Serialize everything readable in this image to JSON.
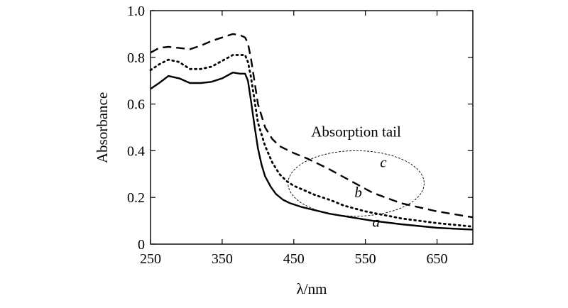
{
  "chart_data": {
    "type": "line",
    "xlabel": "λ/nm",
    "ylabel": "Absorbance",
    "xlim": [
      250,
      700
    ],
    "ylim": [
      0,
      1.0
    ],
    "x_ticks": [
      250,
      350,
      450,
      550,
      650
    ],
    "y_ticks": [
      0,
      0.2,
      0.4,
      0.6,
      0.8,
      1.0
    ],
    "x_tick_labels": [
      "250",
      "350",
      "450",
      "550",
      "650"
    ],
    "y_tick_labels": [
      "0",
      "0.2",
      "0.4",
      "0.6",
      "0.8",
      "1.0"
    ],
    "grid": false,
    "annotation": {
      "text": "Absorption tail",
      "ellipse_center": [
        537,
        0.26
      ],
      "ellipse_radius": [
        95,
        0.14
      ]
    },
    "series": [
      {
        "name": "a",
        "style": "solid",
        "label_at": [
          565,
          0.075
        ],
        "x": [
          250,
          262,
          275,
          290,
          305,
          320,
          335,
          350,
          365,
          375,
          382,
          386,
          390,
          395,
          400,
          405,
          410,
          418,
          425,
          435,
          445,
          460,
          480,
          500,
          530,
          560,
          600,
          650,
          700
        ],
        "y": [
          0.665,
          0.69,
          0.72,
          0.71,
          0.69,
          0.69,
          0.695,
          0.71,
          0.735,
          0.73,
          0.73,
          0.7,
          0.62,
          0.51,
          0.41,
          0.34,
          0.29,
          0.245,
          0.215,
          0.19,
          0.175,
          0.16,
          0.145,
          0.13,
          0.115,
          0.1,
          0.085,
          0.07,
          0.062
        ]
      },
      {
        "name": "b",
        "style": "dotted",
        "label_at": [
          540,
          0.2
        ],
        "x": [
          250,
          262,
          275,
          290,
          305,
          320,
          335,
          350,
          365,
          375,
          382,
          386,
          390,
          395,
          400,
          410,
          420,
          430,
          440,
          450,
          465,
          480,
          500,
          520,
          550,
          600,
          650,
          700
        ],
        "y": [
          0.745,
          0.77,
          0.79,
          0.78,
          0.75,
          0.75,
          0.76,
          0.785,
          0.81,
          0.81,
          0.81,
          0.78,
          0.72,
          0.62,
          0.52,
          0.42,
          0.35,
          0.3,
          0.27,
          0.25,
          0.23,
          0.21,
          0.19,
          0.165,
          0.14,
          0.11,
          0.09,
          0.075
        ]
      },
      {
        "name": "c",
        "style": "dashed",
        "label_at": [
          575,
          0.33
        ],
        "x": [
          250,
          262,
          275,
          290,
          305,
          320,
          335,
          350,
          365,
          375,
          382,
          386,
          390,
          395,
          400,
          410,
          420,
          430,
          440,
          450,
          470,
          500,
          530,
          560,
          600,
          650,
          700
        ],
        "y": [
          0.82,
          0.84,
          0.845,
          0.84,
          0.835,
          0.85,
          0.87,
          0.885,
          0.9,
          0.895,
          0.885,
          0.86,
          0.8,
          0.7,
          0.6,
          0.5,
          0.45,
          0.42,
          0.405,
          0.39,
          0.365,
          0.32,
          0.27,
          0.22,
          0.175,
          0.14,
          0.115
        ]
      }
    ]
  }
}
